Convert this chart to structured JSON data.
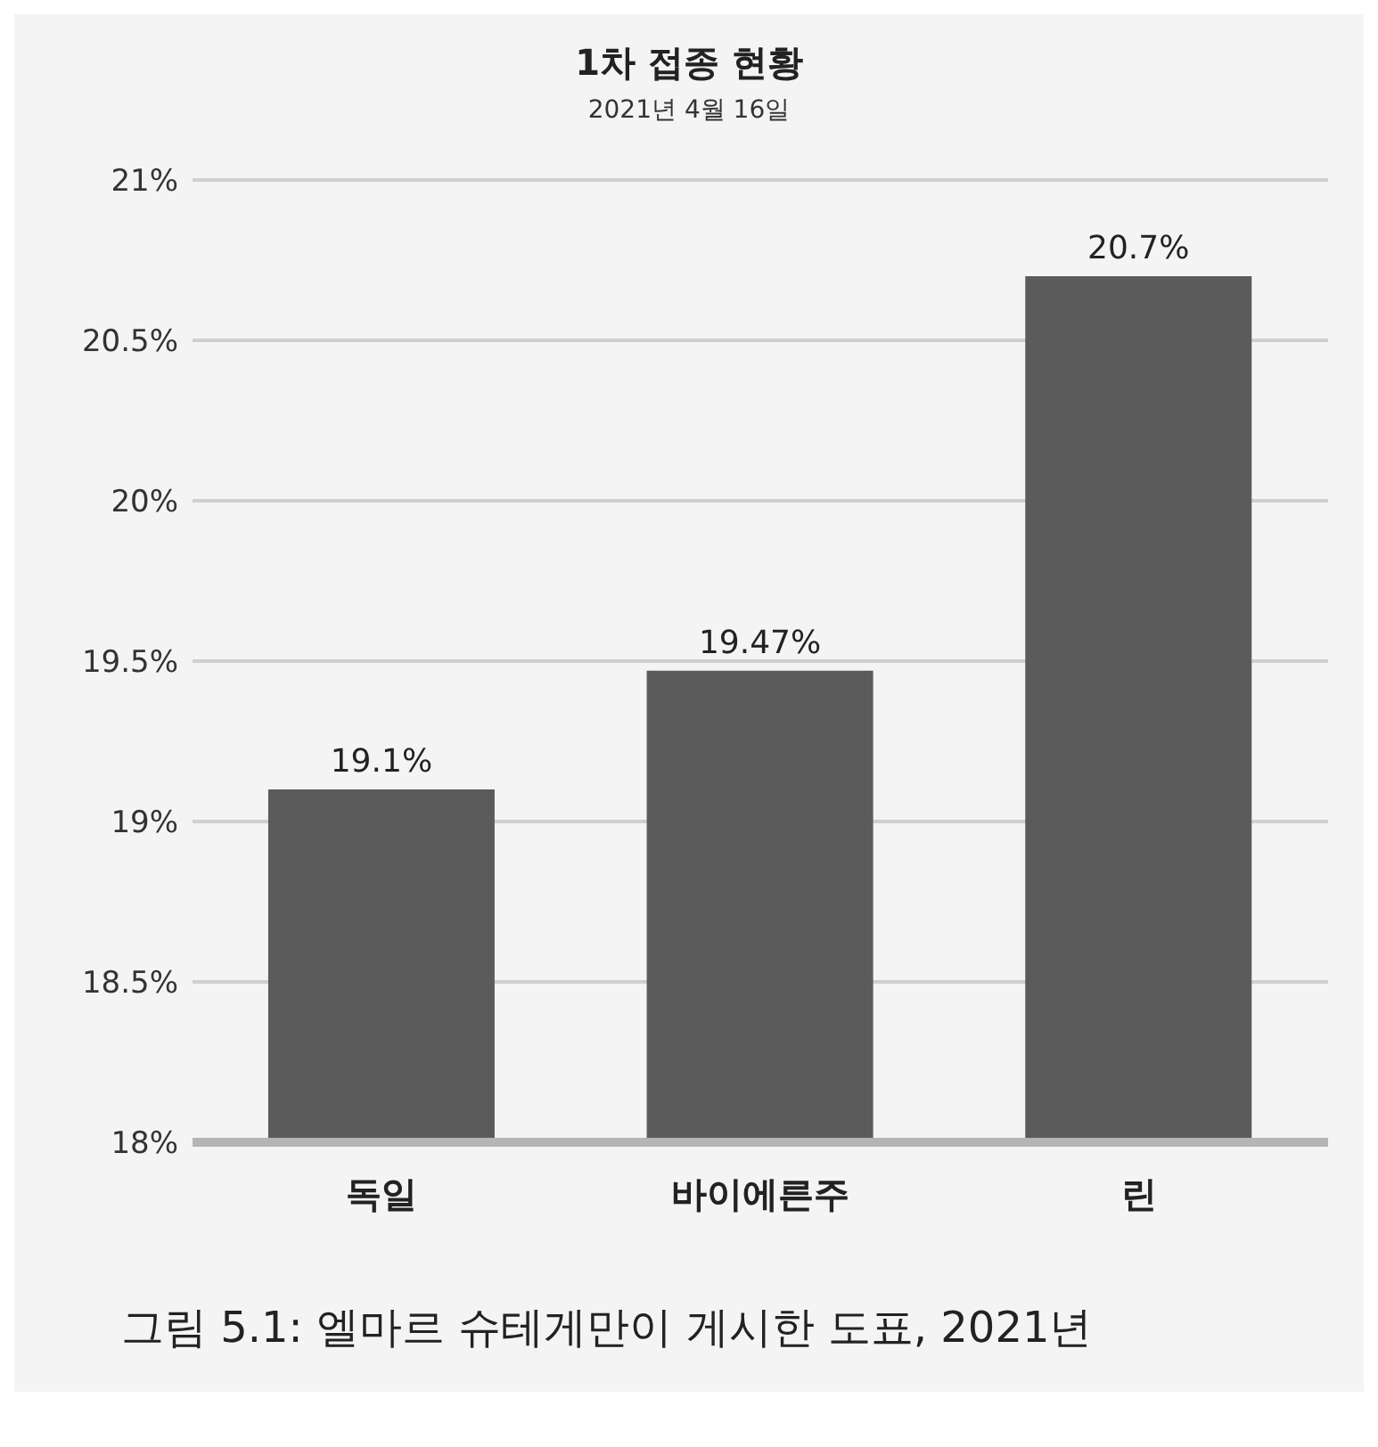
{
  "chart_data": {
    "type": "bar",
    "title": "1차 접종 현황",
    "subtitle": "2021년 4월 16일",
    "categories": [
      "독일",
      "바이에른주",
      "린"
    ],
    "values": [
      19.1,
      19.47,
      20.7
    ],
    "value_labels": [
      "19.1%",
      "19.47%",
      "20.7%"
    ],
    "color": "#5b5b5b",
    "ylim": [
      18,
      21
    ],
    "yticks": [
      {
        "value": 18,
        "label": "18%"
      },
      {
        "value": 18.5,
        "label": "18.5%"
      },
      {
        "value": 19,
        "label": "19%"
      },
      {
        "value": 19.5,
        "label": "19.5%"
      },
      {
        "value": 20,
        "label": "20%"
      },
      {
        "value": 20.5,
        "label": "20.5%"
      },
      {
        "value": 21,
        "label": "21%"
      }
    ],
    "grid": "y",
    "annotations": [
      "그림 5.1: 엘마르 슈테게만이 게시한 도표, 2021년"
    ]
  }
}
